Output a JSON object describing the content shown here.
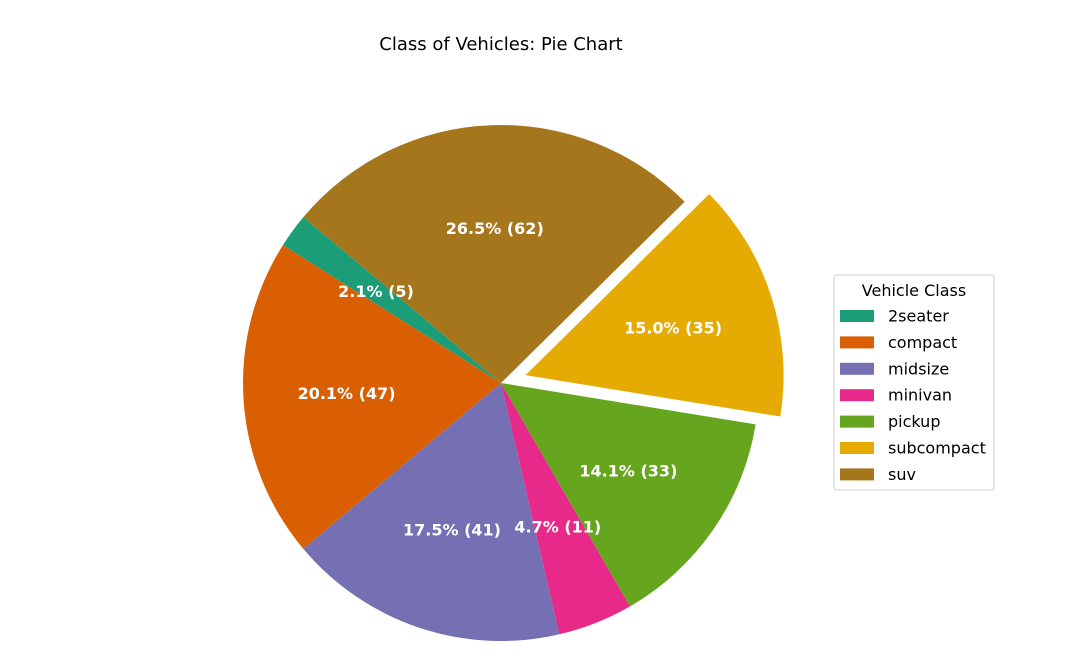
{
  "chart_data": {
    "type": "pie",
    "title": "Class of Vehicles: Pie Chart",
    "legend_title": "Vehicle Class",
    "legend_position": "right",
    "slices": [
      {
        "label": "2seater",
        "value": 5,
        "percent_label": "2.1% (5)",
        "color": "#1b9e77",
        "explode": false
      },
      {
        "label": "compact",
        "value": 47,
        "percent_label": "20.1% (47)",
        "color": "#d95f02",
        "explode": false
      },
      {
        "label": "midsize",
        "value": 41,
        "percent_label": "17.5% (41)",
        "color": "#7570b3",
        "explode": false
      },
      {
        "label": "minivan",
        "value": 11,
        "percent_label": "4.7% (11)",
        "color": "#e7298a",
        "explode": false
      },
      {
        "label": "pickup",
        "value": 33,
        "percent_label": "14.1% (33)",
        "color": "#66a61e",
        "explode": false
      },
      {
        "label": "subcompact",
        "value": 35,
        "percent_label": "15.0% (35)",
        "color": "#e6ab02",
        "explode": true
      },
      {
        "label": "suv",
        "value": 62,
        "percent_label": "26.5% (62)",
        "color": "#a6761d",
        "explode": false
      }
    ]
  }
}
